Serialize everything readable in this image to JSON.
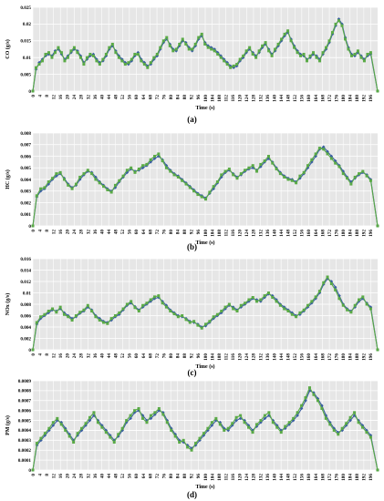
{
  "chart_data": [
    {
      "type": "line",
      "panel_label": "(a)",
      "ylabel": "CO (g/s)",
      "xlabel": "Time (s)",
      "xlim": [
        0,
        200
      ],
      "ylim": [
        0,
        0.025
      ],
      "yticks": [
        "0",
        "0.005",
        "0.01",
        "0.015",
        "0.02",
        "0.025"
      ],
      "grid": true,
      "legend": "none",
      "colors": {
        "predicted": "#3a5fa0",
        "measured": "#5aaa46"
      },
      "series": [
        {
          "name": "",
          "values": [
            0,
            0.0065,
            0.0085,
            0.0095,
            0.0105,
            0.011,
            0.0105,
            0.012,
            0.0125,
            0.011,
            0.0095,
            0.0105,
            0.0115,
            0.0125,
            0.012,
            0.0105,
            0.0085,
            0.0095,
            0.0105,
            0.011,
            0.0095,
            0.0085,
            0.009,
            0.0105,
            0.0125,
            0.0135,
            0.012,
            0.0105,
            0.0095,
            0.0085,
            0.008,
            0.009,
            0.0105,
            0.0115,
            0.0095,
            0.0085,
            0.0075,
            0.008,
            0.0095,
            0.0105,
            0.0125,
            0.0145,
            0.0155,
            0.014,
            0.0125,
            0.012,
            0.0135,
            0.015,
            0.0145,
            0.013,
            0.012,
            0.0135,
            0.0155,
            0.0165,
            0.0145,
            0.0135,
            0.013,
            0.0125,
            0.0115,
            0.0105,
            0.0095,
            0.0085,
            0.0075,
            0.007,
            0.0075,
            0.009,
            0.01,
            0.0115,
            0.0125,
            0.0115,
            0.0105,
            0.0115,
            0.013,
            0.014,
            0.0125,
            0.011,
            0.012,
            0.0135,
            0.015,
            0.0165,
            0.0175,
            0.0155,
            0.0135,
            0.012,
            0.011,
            0.0105,
            0.0095,
            0.01,
            0.011,
            0.0105,
            0.0095,
            0.011,
            0.0125,
            0.0145,
            0.017,
            0.0195,
            0.0215,
            0.02,
            0.016,
            0.013,
            0.011,
            0.0105,
            0.0115,
            0.0105,
            0.0095,
            0.0105,
            0.011,
            0.0
          ]
        },
        {
          "name": "",
          "values": [
            0,
            0.007,
            0.008,
            0.009,
            0.011,
            0.0115,
            0.01,
            0.0115,
            0.013,
            0.0115,
            0.009,
            0.01,
            0.012,
            0.013,
            0.0115,
            0.01,
            0.008,
            0.01,
            0.011,
            0.0105,
            0.009,
            0.008,
            0.0095,
            0.011,
            0.013,
            0.014,
            0.0115,
            0.01,
            0.009,
            0.008,
            0.0085,
            0.0095,
            0.011,
            0.011,
            0.009,
            0.008,
            0.007,
            0.0085,
            0.01,
            0.011,
            0.013,
            0.015,
            0.016,
            0.0135,
            0.012,
            0.0125,
            0.014,
            0.0155,
            0.014,
            0.0125,
            0.0125,
            0.014,
            0.016,
            0.017,
            0.014,
            0.013,
            0.0125,
            0.012,
            0.011,
            0.01,
            0.009,
            0.008,
            0.007,
            0.0075,
            0.008,
            0.0095,
            0.0105,
            0.012,
            0.013,
            0.011,
            0.01,
            0.012,
            0.0135,
            0.0145,
            0.012,
            0.0105,
            0.0125,
            0.014,
            0.0155,
            0.017,
            0.018,
            0.015,
            0.013,
            0.0115,
            0.0105,
            0.011,
            0.009,
            0.0105,
            0.0115,
            0.01,
            0.009,
            0.0115,
            0.013,
            0.015,
            0.0175,
            0.02,
            0.021,
            0.0195,
            0.0155,
            0.0125,
            0.0105,
            0.011,
            0.012,
            0.01,
            0.009,
            0.011,
            0.0115,
            0.0
          ]
        }
      ]
    },
    {
      "type": "line",
      "panel_label": "(b)",
      "ylabel": "HC (g/s)",
      "xlabel": "Time (s)",
      "xlim": [
        0,
        200
      ],
      "ylim": [
        0,
        0.008
      ],
      "yticks": [
        "0",
        "0.001",
        "0.002",
        "0.003",
        "0.004",
        "0.005",
        "0.006",
        "0.007",
        "0.008"
      ],
      "grid": true,
      "legend": "none",
      "colors": {
        "predicted": "#3a5fa0",
        "measured": "#5aaa46"
      },
      "series": [
        {
          "name": "",
          "values": [
            0,
            0.0025,
            0.003,
            0.0032,
            0.0036,
            0.004,
            0.0043,
            0.0045,
            0.0041,
            0.0036,
            0.0033,
            0.0035,
            0.004,
            0.0044,
            0.0047,
            0.0046,
            0.0042,
            0.0038,
            0.0035,
            0.0032,
            0.003,
            0.0033,
            0.0038,
            0.0042,
            0.0046,
            0.0049,
            0.0047,
            0.0048,
            0.005,
            0.0052,
            0.0055,
            0.0058,
            0.006,
            0.0057,
            0.0052,
            0.0048,
            0.0045,
            0.0043,
            0.004,
            0.0037,
            0.0034,
            0.0031,
            0.0028,
            0.0026,
            0.0024,
            0.0028,
            0.0032,
            0.0037,
            0.0042,
            0.0046,
            0.0048,
            0.0045,
            0.0042,
            0.0044,
            0.0047,
            0.0049,
            0.005,
            0.0048,
            0.0051,
            0.0055,
            0.0058,
            0.0055,
            0.005,
            0.0046,
            0.0043,
            0.0041,
            0.004,
            0.0038,
            0.0041,
            0.0045,
            0.005,
            0.0055,
            0.006,
            0.0066,
            0.0068,
            0.0064,
            0.006,
            0.0056,
            0.0052,
            0.0047,
            0.0042,
            0.0038,
            0.0041,
            0.0044,
            0.0046,
            0.0044,
            0.004,
            0.0
          ]
        },
        {
          "name": "",
          "values": [
            0,
            0.0026,
            0.0032,
            0.0033,
            0.0038,
            0.0041,
            0.0045,
            0.0046,
            0.004,
            0.0035,
            0.0032,
            0.0036,
            0.0042,
            0.0045,
            0.0048,
            0.0045,
            0.004,
            0.0037,
            0.0034,
            0.0031,
            0.0029,
            0.0035,
            0.0039,
            0.0043,
            0.0048,
            0.005,
            0.0046,
            0.0049,
            0.0052,
            0.0053,
            0.0057,
            0.006,
            0.0062,
            0.0056,
            0.005,
            0.0047,
            0.0044,
            0.0042,
            0.0039,
            0.0036,
            0.0033,
            0.003,
            0.0027,
            0.0025,
            0.0023,
            0.0029,
            0.0034,
            0.0038,
            0.0044,
            0.0047,
            0.0049,
            0.0044,
            0.0041,
            0.0045,
            0.0048,
            0.005,
            0.0052,
            0.0047,
            0.0053,
            0.0056,
            0.006,
            0.0054,
            0.0049,
            0.0045,
            0.0042,
            0.004,
            0.0039,
            0.0037,
            0.0043,
            0.0046,
            0.0052,
            0.0057,
            0.0062,
            0.0067,
            0.0066,
            0.0062,
            0.0058,
            0.0054,
            0.0051,
            0.0045,
            0.0041,
            0.0036,
            0.0042,
            0.0045,
            0.0047,
            0.0043,
            0.0039,
            0.0
          ]
        }
      ]
    },
    {
      "type": "line",
      "panel_label": "(c)",
      "ylabel": "NOx (g/s)",
      "xlabel": "Time (s)",
      "xlim": [
        0,
        200
      ],
      "ylim": [
        0,
        0.016
      ],
      "yticks": [
        "0",
        "0.002",
        "0.004",
        "0.006",
        "0.008",
        "0.01",
        "0.012",
        "0.014",
        "0.016"
      ],
      "grid": true,
      "legend": "none",
      "colors": {
        "predicted": "#3a5fa0",
        "measured": "#5aaa46"
      },
      "series": [
        {
          "name": "",
          "values": [
            0,
            0.0045,
            0.0055,
            0.006,
            0.0065,
            0.007,
            0.0068,
            0.0072,
            0.0065,
            0.006,
            0.0055,
            0.0058,
            0.0064,
            0.0068,
            0.0075,
            0.007,
            0.006,
            0.0055,
            0.005,
            0.0048,
            0.0052,
            0.0058,
            0.0062,
            0.007,
            0.0078,
            0.0082,
            0.0076,
            0.007,
            0.0075,
            0.008,
            0.0085,
            0.009,
            0.0092,
            0.0085,
            0.0078,
            0.007,
            0.0065,
            0.006,
            0.0058,
            0.0055,
            0.005,
            0.0048,
            0.0045,
            0.004,
            0.0042,
            0.0048,
            0.0055,
            0.006,
            0.0065,
            0.0072,
            0.0078,
            0.0075,
            0.007,
            0.0075,
            0.008,
            0.0085,
            0.009,
            0.0088,
            0.0085,
            0.0092,
            0.0098,
            0.0095,
            0.0088,
            0.008,
            0.0075,
            0.007,
            0.0065,
            0.006,
            0.0062,
            0.0068,
            0.0075,
            0.0082,
            0.009,
            0.01,
            0.0115,
            0.0125,
            0.012,
            0.011,
            0.0095,
            0.008,
            0.0072,
            0.0068,
            0.0075,
            0.0085,
            0.009,
            0.0082,
            0.0075,
            0.0
          ]
        },
        {
          "name": "",
          "values": [
            0,
            0.0048,
            0.0058,
            0.0062,
            0.0068,
            0.0072,
            0.0066,
            0.0075,
            0.0062,
            0.0058,
            0.0052,
            0.006,
            0.0066,
            0.007,
            0.0078,
            0.0068,
            0.0058,
            0.0052,
            0.0048,
            0.0046,
            0.0055,
            0.006,
            0.0065,
            0.0072,
            0.008,
            0.0085,
            0.0074,
            0.0068,
            0.0078,
            0.0082,
            0.0088,
            0.0093,
            0.0095,
            0.0082,
            0.0075,
            0.0068,
            0.0063,
            0.0058,
            0.006,
            0.0053,
            0.0048,
            0.005,
            0.0043,
            0.0038,
            0.0045,
            0.005,
            0.0058,
            0.0062,
            0.0068,
            0.0075,
            0.008,
            0.0072,
            0.0068,
            0.0078,
            0.0082,
            0.0088,
            0.0092,
            0.0085,
            0.0088,
            0.0095,
            0.01,
            0.0092,
            0.0085,
            0.0078,
            0.0072,
            0.0068,
            0.0062,
            0.0058,
            0.0065,
            0.007,
            0.0078,
            0.0085,
            0.0093,
            0.0103,
            0.0118,
            0.0128,
            0.0116,
            0.0105,
            0.009,
            0.0078,
            0.007,
            0.0066,
            0.0078,
            0.0088,
            0.0093,
            0.008,
            0.0072,
            0.0
          ]
        }
      ]
    },
    {
      "type": "line",
      "panel_label": "(d)",
      "ylabel": "PM (g/s)",
      "xlabel": "Time (s)",
      "xlim": [
        0,
        200
      ],
      "ylim": [
        0,
        0.0009
      ],
      "yticks": [
        "0",
        "0.0001",
        "0.0002",
        "0.0003",
        "0.0004",
        "0.0005",
        "0.0006",
        "0.0007",
        "0.0008",
        "0.0009"
      ],
      "grid": true,
      "legend": "none",
      "colors": {
        "predicted": "#3a5fa0",
        "measured": "#5aaa46"
      },
      "series": [
        {
          "name": "",
          "values": [
            0,
            0.00025,
            0.0003,
            0.00035,
            0.0004,
            0.00045,
            0.0005,
            0.00048,
            0.00042,
            0.00036,
            0.0003,
            0.00035,
            0.0004,
            0.00045,
            0.0005,
            0.00055,
            0.0005,
            0.00045,
            0.0004,
            0.00035,
            0.0003,
            0.00034,
            0.0004,
            0.00048,
            0.00052,
            0.00058,
            0.0006,
            0.00055,
            0.0005,
            0.00052,
            0.00056,
            0.0006,
            0.00058,
            0.0005,
            0.00042,
            0.00036,
            0.0003,
            0.00028,
            0.00025,
            0.00022,
            0.00025,
            0.0003,
            0.00035,
            0.0004,
            0.00045,
            0.0005,
            0.00048,
            0.00042,
            0.0004,
            0.00045,
            0.0005,
            0.00052,
            0.0005,
            0.00045,
            0.0004,
            0.00044,
            0.00048,
            0.00052,
            0.00055,
            0.0005,
            0.00045,
            0.0004,
            0.00042,
            0.00046,
            0.0005,
            0.00055,
            0.00062,
            0.0007,
            0.0008,
            0.00078,
            0.00072,
            0.00065,
            0.00055,
            0.00048,
            0.00042,
            0.00038,
            0.0004,
            0.00045,
            0.0005,
            0.00055,
            0.0005,
            0.00045,
            0.0004,
            0.00035,
            0.0
          ]
        },
        {
          "name": "",
          "values": [
            0,
            0.00027,
            0.00032,
            0.00037,
            0.00042,
            0.00048,
            0.00052,
            0.00046,
            0.0004,
            0.00034,
            0.00028,
            0.00037,
            0.00042,
            0.00047,
            0.00053,
            0.00058,
            0.00048,
            0.00043,
            0.00038,
            0.00033,
            0.00028,
            0.00036,
            0.00042,
            0.0005,
            0.00055,
            0.0006,
            0.00062,
            0.00052,
            0.00048,
            0.00055,
            0.00058,
            0.00062,
            0.00056,
            0.00048,
            0.0004,
            0.00034,
            0.00028,
            0.0003,
            0.00023,
            0.0002,
            0.00027,
            0.00032,
            0.00037,
            0.00042,
            0.00048,
            0.00052,
            0.00046,
            0.0004,
            0.00042,
            0.00047,
            0.00053,
            0.00055,
            0.00048,
            0.00043,
            0.00038,
            0.00046,
            0.0005,
            0.00055,
            0.00058,
            0.00048,
            0.00043,
            0.00038,
            0.00044,
            0.00048,
            0.00052,
            0.00058,
            0.00065,
            0.00073,
            0.00083,
            0.00076,
            0.0007,
            0.00062,
            0.00052,
            0.00046,
            0.0004,
            0.00036,
            0.00042,
            0.00047,
            0.00053,
            0.00058,
            0.00048,
            0.00043,
            0.00038,
            0.00033,
            0.0
          ]
        }
      ]
    }
  ],
  "x_tick_labels": [
    "0",
    "4",
    "8",
    "12",
    "16",
    "20",
    "24",
    "28",
    "32",
    "36",
    "40",
    "44",
    "48",
    "52",
    "56",
    "60",
    "64",
    "68",
    "72",
    "76",
    "80",
    "84",
    "88",
    "92",
    "96",
    "100",
    "104",
    "108",
    "112",
    "116",
    "120",
    "124",
    "128",
    "132",
    "136",
    "140",
    "144",
    "148",
    "152",
    "156",
    "160",
    "164",
    "168",
    "172",
    "176",
    "180",
    "184",
    "188",
    "192",
    "196"
  ]
}
